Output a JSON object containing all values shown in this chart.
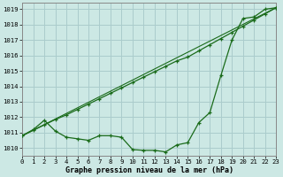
{
  "line1_x": [
    0,
    1,
    2,
    3,
    4,
    5,
    6,
    7,
    8,
    9,
    10,
    11,
    12,
    13,
    14,
    15,
    16,
    17,
    18,
    19,
    20,
    21,
    22,
    23
  ],
  "line1_y": [
    1010.8,
    1011.2,
    1011.8,
    1011.1,
    1010.7,
    1010.6,
    1010.5,
    1010.8,
    1010.8,
    1010.7,
    1009.9,
    1009.85,
    1009.85,
    1009.75,
    1010.2,
    1010.35,
    1011.65,
    1012.3,
    1014.7,
    1017.0,
    1018.4,
    1018.5,
    1019.0,
    1019.1
  ],
  "line2_x": [
    0,
    1,
    2,
    3,
    4,
    5,
    6,
    7,
    8,
    9,
    10,
    11,
    12,
    13,
    14,
    15,
    16,
    17,
    18,
    19,
    20,
    21,
    22,
    23
  ],
  "line2_y": [
    1010.8,
    1011.15,
    1011.5,
    1011.85,
    1012.15,
    1012.5,
    1012.85,
    1013.2,
    1013.55,
    1013.9,
    1014.25,
    1014.6,
    1014.95,
    1015.3,
    1015.65,
    1015.9,
    1016.3,
    1016.7,
    1017.1,
    1017.5,
    1017.9,
    1018.3,
    1018.7,
    1019.1
  ],
  "line_color": "#1a6b1a",
  "bg_color": "#cce8e4",
  "grid_color": "#aacccc",
  "xlabel": "Graphe pression niveau de la mer (hPa)",
  "xlim": [
    0,
    23
  ],
  "ylim": [
    1009.5,
    1019.4
  ],
  "yticks": [
    1010,
    1011,
    1012,
    1013,
    1014,
    1015,
    1016,
    1017,
    1018,
    1019
  ],
  "xticks": [
    0,
    1,
    2,
    3,
    4,
    5,
    6,
    7,
    8,
    9,
    10,
    11,
    12,
    13,
    14,
    15,
    16,
    17,
    18,
    19,
    20,
    21,
    22,
    23
  ],
  "xlabel_fontsize": 6.0,
  "tick_fontsize": 5.2
}
